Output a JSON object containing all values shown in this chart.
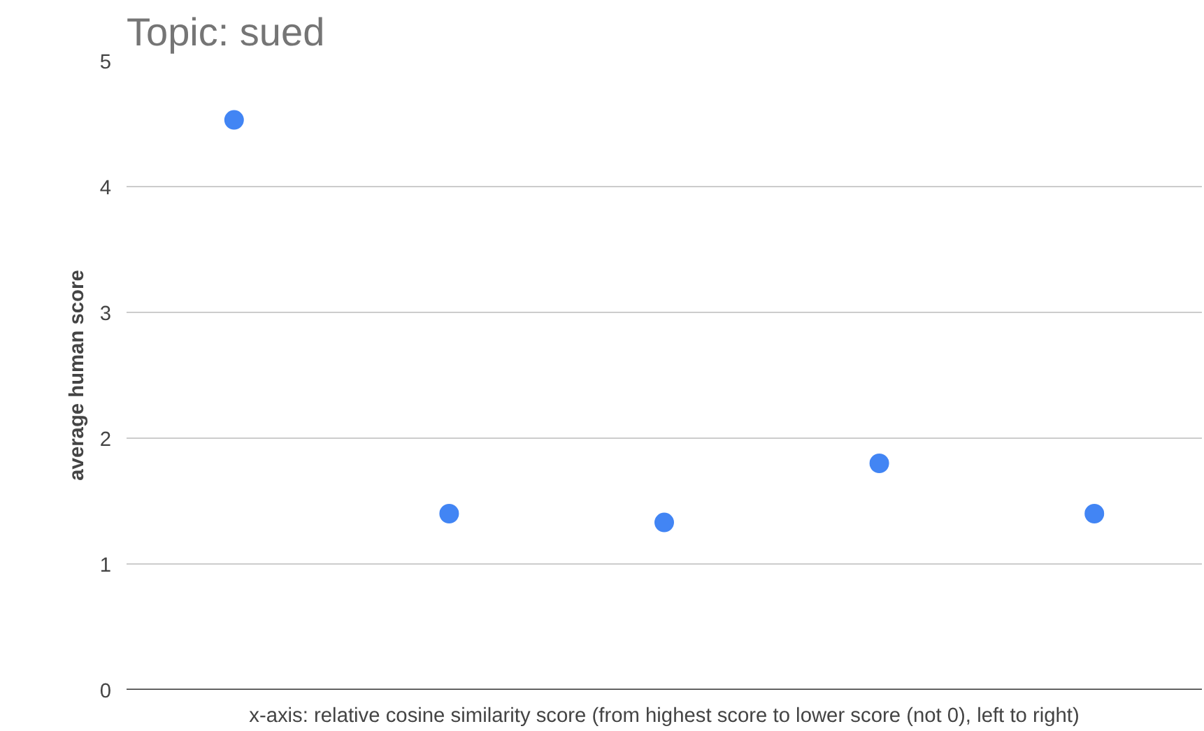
{
  "chart_data": {
    "type": "scatter",
    "title": "Topic: sued",
    "xlabel": "x-axis: relative cosine similarity score (from highest score to lower score (not 0), left to right)",
    "ylabel": "average human score",
    "categories": [
      null,
      null,
      null,
      null,
      null
    ],
    "series": [
      {
        "color": "#4285f4",
        "values": [
          4.53,
          1.4,
          1.33,
          1.8,
          1.4
        ]
      }
    ],
    "ylim": [
      0,
      5
    ],
    "yticks": [
      0,
      1,
      2,
      3,
      4,
      5
    ],
    "grid": "y",
    "marker": "circle",
    "tick_labels": "y"
  }
}
